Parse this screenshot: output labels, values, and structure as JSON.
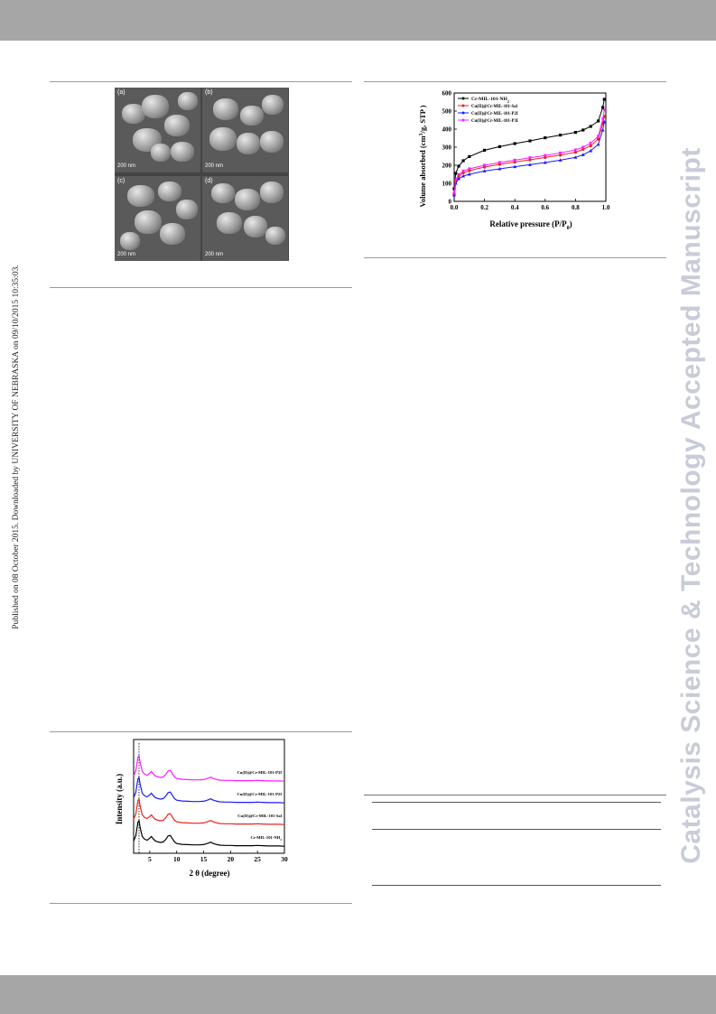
{
  "side_note": "Published on 08 October 2015. Downloaded by UNIVERSITY OF NEBRASKA on 09/10/2015 10:35:03.",
  "watermark": "Catalysis Science & Technology Accepted Manuscript",
  "sem_figure": {
    "panels": [
      {
        "label": "(a)",
        "scale": "200 nm"
      },
      {
        "label": "(b)",
        "scale": "200 nm"
      },
      {
        "label": "(c)",
        "scale": "200 nm"
      },
      {
        "label": "(d)",
        "scale": "200 nm"
      }
    ]
  },
  "isotherm_chart": {
    "chart_data": {
      "type": "line",
      "xlabel_main": "Relative pressure (P/P",
      "xlabel_sub": "0",
      "xlabel_end": ")",
      "ylabel_main": "Volume absorbed (cm",
      "ylabel_sup": "3",
      "ylabel_end": "/g, STP )",
      "xlim": [
        0,
        1.0
      ],
      "ylim": [
        0,
        600
      ],
      "x_ticks": [
        "0.0",
        "0.2",
        "0.4",
        "0.6",
        "0.8",
        "1.0"
      ],
      "y_ticks": [
        "0",
        "100",
        "200",
        "300",
        "400",
        "500",
        "600"
      ],
      "legend_position": "top-left",
      "x": [
        0.0,
        0.01,
        0.03,
        0.06,
        0.1,
        0.2,
        0.3,
        0.4,
        0.5,
        0.6,
        0.7,
        0.8,
        0.85,
        0.9,
        0.95,
        0.98,
        0.99
      ],
      "series": [
        {
          "name": "Cr-MIL-101-NH",
          "name_sub": "2",
          "color": "#000000",
          "marker": "square",
          "values": [
            70,
            155,
            195,
            225,
            248,
            283,
            303,
            320,
            335,
            352,
            367,
            382,
            395,
            415,
            445,
            520,
            565
          ]
        },
        {
          "name": "Cu(II)@Cr-MIL-101-Sal",
          "color": "#e8241e",
          "marker": "circle",
          "values": [
            40,
            110,
            140,
            158,
            170,
            190,
            205,
            218,
            230,
            243,
            256,
            272,
            288,
            308,
            345,
            430,
            470
          ]
        },
        {
          "name": "Cu(II)@Cr-MIL-101-P2I",
          "color": "#1a1aff",
          "marker": "triangle",
          "values": [
            35,
            100,
            125,
            140,
            150,
            168,
            180,
            192,
            203,
            215,
            228,
            244,
            258,
            280,
            315,
            395,
            440
          ]
        },
        {
          "name": "Cu(II)@Cr-MIL-101-P3I",
          "color": "#ff1aff",
          "marker": "triangle-down",
          "values": [
            45,
            118,
            148,
            168,
            180,
            200,
            215,
            228,
            241,
            254,
            268,
            285,
            300,
            322,
            360,
            455,
            505
          ]
        }
      ]
    }
  },
  "xrd_chart": {
    "chart_data": {
      "type": "line",
      "xlabel": "2 θ (degree)",
      "ylabel": "Intensity (a.u.)",
      "xlim": [
        2,
        30
      ],
      "x_ticks": [
        "5",
        "10",
        "15",
        "20",
        "25",
        "30"
      ],
      "reference_line_x": 3.0,
      "series": [
        {
          "name": "Cu(II)@Cr-MIL-101-P3I",
          "color": "#ff1aff",
          "offset": 3
        },
        {
          "name": "Cu(II)@Cr-MIL-101-P2I",
          "color": "#1a1aff",
          "offset": 2
        },
        {
          "name": "Cu(II)@Cr-MIL-101-Sal",
          "color": "#e8241e",
          "offset": 1
        },
        {
          "name": "Cr-MIL-101-NH",
          "name_sub": "2",
          "color": "#000000",
          "offset": 0
        }
      ],
      "x": [
        2.0,
        2.4,
        2.8,
        3.0,
        3.2,
        3.6,
        4.0,
        4.5,
        5.0,
        5.3,
        5.6,
        6.0,
        6.5,
        7.0,
        7.5,
        8.0,
        8.4,
        8.8,
        9.2,
        9.6,
        10.0,
        11,
        12,
        13,
        14,
        15,
        15.8,
        16.3,
        16.8,
        17.5,
        18,
        19,
        20,
        21,
        22,
        23,
        24,
        25,
        26,
        27,
        28,
        29,
        30
      ],
      "profile": [
        0.25,
        0.45,
        0.95,
        1.0,
        0.75,
        0.42,
        0.33,
        0.28,
        0.36,
        0.42,
        0.34,
        0.26,
        0.22,
        0.2,
        0.22,
        0.32,
        0.44,
        0.46,
        0.34,
        0.22,
        0.16,
        0.13,
        0.12,
        0.11,
        0.11,
        0.12,
        0.17,
        0.21,
        0.16,
        0.12,
        0.1,
        0.09,
        0.09,
        0.08,
        0.08,
        0.08,
        0.08,
        0.09,
        0.08,
        0.07,
        0.07,
        0.07,
        0.06
      ]
    }
  }
}
